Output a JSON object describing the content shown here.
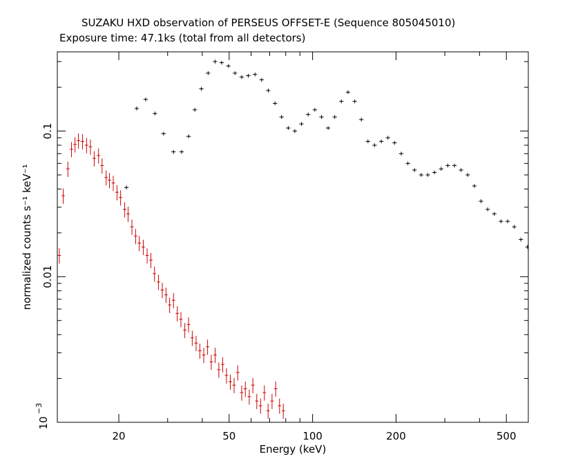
{
  "chart_data": {
    "type": "scatter",
    "title": "SUZAKU HXD observation of PERSEUS OFFSET-E (Sequence 805045010)",
    "subtitle": "Exposure time: 47.1ks (total from all detectors)",
    "xlabel": "Energy (keV)",
    "ylabel": "normalized counts s⁻¹ keV⁻¹",
    "xscale": "log",
    "yscale": "log",
    "xlim": [
      12,
      600
    ],
    "ylim": [
      0.001,
      0.35
    ],
    "grid": false,
    "legend": "none",
    "x_ticks": [
      {
        "value": 20,
        "label": "20"
      },
      {
        "value": 50,
        "label": "50"
      },
      {
        "value": 100,
        "label": "100"
      },
      {
        "value": 200,
        "label": "200"
      },
      {
        "value": 500,
        "label": "500"
      }
    ],
    "y_ticks": [
      {
        "value": 0.1,
        "label": "0.1"
      },
      {
        "value": 0.01,
        "label": "0.01"
      }
    ],
    "y_tick_exp": {
      "value": 0.001,
      "base": "10",
      "exp": "−3"
    },
    "series": [
      {
        "color": "#cc0000",
        "x": [
          12.2,
          12.6,
          13.1,
          13.5,
          13.9,
          14.3,
          14.8,
          15.3,
          15.8,
          16.3,
          16.9,
          17.4,
          18.0,
          18.5,
          19.1,
          19.7,
          20.3,
          21.0,
          21.6,
          22.3,
          23.0,
          23.7,
          24.5,
          25.3,
          26.1,
          26.9,
          27.8,
          28.7,
          29.6,
          30.5,
          31.5,
          32.5,
          33.5,
          34.6,
          35.7,
          36.8,
          38.0,
          39.2,
          40.5,
          41.8,
          43.1,
          44.5,
          45.9,
          47.4,
          48.9,
          50.5,
          52.1,
          53.7,
          55.5,
          57.2,
          59.1,
          60.9,
          62.9,
          64.9,
          67.0,
          69.1,
          71.4,
          73.6,
          76.0,
          78.4
        ],
        "y": [
          0.014,
          0.036,
          0.055,
          0.075,
          0.081,
          0.086,
          0.085,
          0.08,
          0.078,
          0.065,
          0.068,
          0.058,
          0.048,
          0.046,
          0.044,
          0.038,
          0.035,
          0.029,
          0.027,
          0.022,
          0.019,
          0.017,
          0.016,
          0.014,
          0.013,
          0.0105,
          0.0092,
          0.0081,
          0.0075,
          0.0064,
          0.0069,
          0.0056,
          0.0051,
          0.0043,
          0.0047,
          0.0038,
          0.0035,
          0.0031,
          0.0029,
          0.0033,
          0.0026,
          0.0029,
          0.0023,
          0.0025,
          0.0021,
          0.0019,
          0.0018,
          0.0022,
          0.0016,
          0.0017,
          0.0015,
          0.0018,
          0.0014,
          0.0013,
          0.0016,
          0.0012,
          0.0014,
          0.0017,
          0.0013,
          0.0012
        ],
        "err_y": 0.12,
        "err_x": 0.014
      },
      {
        "color": "#000000",
        "x": [
          21.3,
          23.2,
          25.0,
          27.0,
          29.0,
          31.5,
          33.7,
          35.7,
          37.6,
          39.7,
          42.0,
          44.5,
          47.0,
          49.7,
          52.5,
          55.5,
          58.6,
          62.0,
          65.5,
          69.2,
          73.2,
          77.3,
          81.7,
          86.3,
          91.2,
          96.4,
          101.9,
          107.7,
          113.8,
          120.2,
          127.0,
          134.2,
          141.9,
          149.9,
          158.4,
          167.4,
          177.0,
          187.0,
          197.6,
          208.8,
          220.7,
          233.2,
          246.5,
          260.5,
          275.3,
          290.9,
          307.4,
          324.9,
          343.3,
          362.8,
          383.4,
          405.2,
          428.2,
          452.5,
          478.2,
          505.3,
          534.0,
          564.3,
          596.3
        ],
        "y": [
          0.041,
          0.143,
          0.165,
          0.132,
          0.096,
          0.072,
          0.072,
          0.092,
          0.14,
          0.195,
          0.25,
          0.3,
          0.295,
          0.28,
          0.25,
          0.235,
          0.24,
          0.245,
          0.225,
          0.19,
          0.155,
          0.125,
          0.105,
          0.1,
          0.112,
          0.13,
          0.14,
          0.125,
          0.105,
          0.125,
          0.16,
          0.185,
          0.16,
          0.12,
          0.085,
          0.08,
          0.085,
          0.09,
          0.083,
          0.07,
          0.06,
          0.054,
          0.05,
          0.05,
          0.052,
          0.055,
          0.058,
          0.058,
          0.054,
          0.05,
          0.042,
          0.033,
          0.029,
          0.027,
          0.024,
          0.024,
          0.022,
          0.018,
          0.016
        ],
        "err_y": 0.03,
        "err_x": 0.018
      }
    ]
  }
}
